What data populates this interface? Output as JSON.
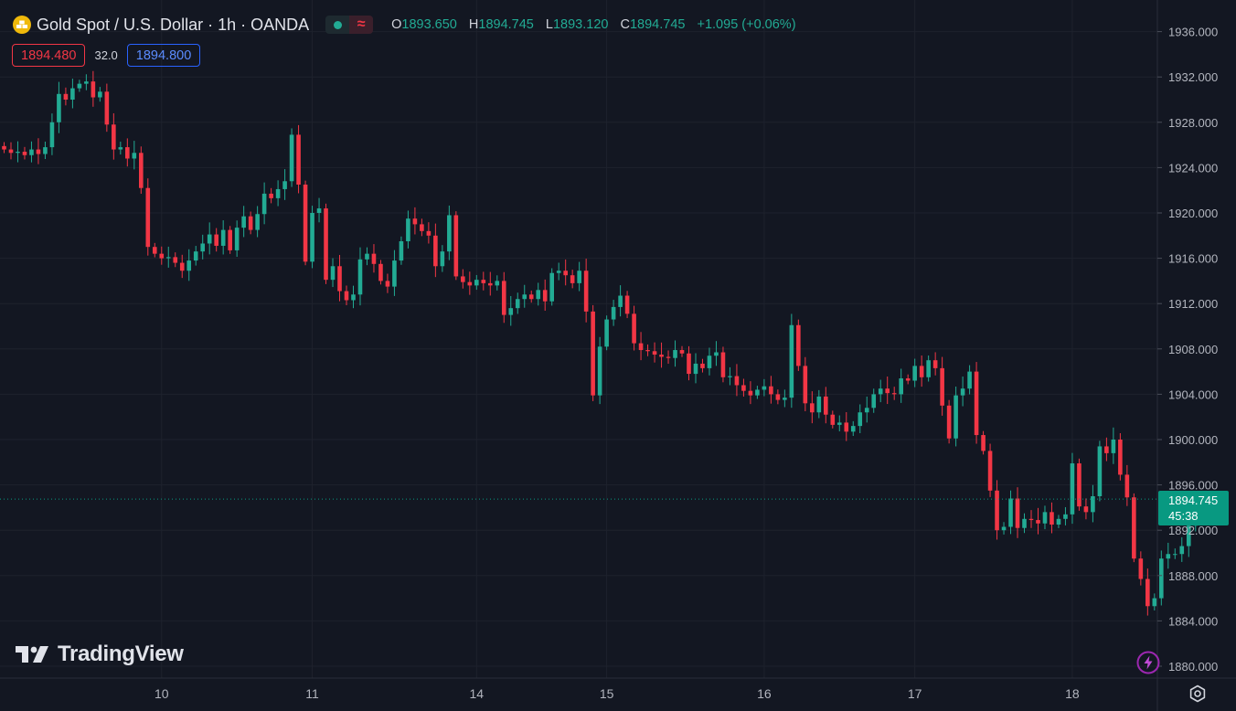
{
  "header": {
    "title": "Gold Spot / U.S. Dollar · 1h · OANDA",
    "ohlc": {
      "o_key": "O",
      "o_val": "1893.650",
      "h_key": "H",
      "h_val": "1894.745",
      "l_key": "L",
      "l_val": "1893.120",
      "c_key": "C",
      "c_val": "1894.745",
      "change": "+1.095 (+0.06%)"
    },
    "sell_price": "1894.480",
    "spread": "32.0",
    "buy_price": "1894.800"
  },
  "brand": {
    "logo_text": "TradingView"
  },
  "last_price": {
    "price": "1894.745",
    "countdown": "45:38"
  },
  "icons": {
    "symbol": "gold-bars-icon",
    "market_status": "dot-icon",
    "replay": "wave-icon",
    "alerts": "lightning-icon",
    "settings": "gear-icon",
    "logo": "tradingview-logo-icon"
  },
  "colors": {
    "background": "#131722",
    "up": "#22ab94",
    "down": "#f23645",
    "buy_border": "#2962ff",
    "last_price_bg": "#089981"
  },
  "chart_data": {
    "type": "candlestick",
    "timeframe": "1h",
    "ylim": [
      1878.5,
      1938.2
    ],
    "y_ticks": [
      "1936.000",
      "1932.000",
      "1928.000",
      "1924.000",
      "1920.000",
      "1916.000",
      "1912.000",
      "1908.000",
      "1904.000",
      "1900.000",
      "1896.000",
      "1892.000",
      "1888.000",
      "1884.000",
      "1880.000"
    ],
    "x_ticks": [
      {
        "label": "10",
        "index": 23
      },
      {
        "label": "11",
        "index": 45
      },
      {
        "label": "14",
        "index": 69
      },
      {
        "label": "15",
        "index": 88
      },
      {
        "label": "16",
        "index": 111
      },
      {
        "label": "17",
        "index": 133
      },
      {
        "label": "18",
        "index": 156
      }
    ],
    "grid": true,
    "last_price": 1894.745,
    "closes": [
      1925.6,
      1925.3,
      1925.4,
      1925.1,
      1925.6,
      1925.2,
      1925.8,
      1928.0,
      1930.5,
      1930.0,
      1931.0,
      1931.4,
      1931.6,
      1930.2,
      1930.7,
      1927.8,
      1925.6,
      1925.8,
      1924.8,
      1925.3,
      1922.2,
      1917.0,
      1916.4,
      1916.0,
      1916.1,
      1915.6,
      1914.9,
      1915.8,
      1916.6,
      1917.3,
      1918.1,
      1917.1,
      1918.5,
      1916.7,
      1918.7,
      1919.7,
      1918.5,
      1919.9,
      1921.7,
      1921.3,
      1922.1,
      1922.8,
      1926.9,
      1922.5,
      1915.7,
      1920.0,
      1920.4,
      1914.1,
      1915.3,
      1913.1,
      1912.3,
      1912.8,
      1915.9,
      1916.4,
      1915.5,
      1914.0,
      1913.5,
      1915.8,
      1917.5,
      1919.5,
      1919.0,
      1918.4,
      1918.0,
      1915.3,
      1916.6,
      1919.8,
      1914.4,
      1913.9,
      1913.6,
      1914.1,
      1913.8,
      1913.6,
      1914.0,
      1911.0,
      1911.6,
      1912.4,
      1912.8,
      1912.4,
      1913.2,
      1912.2,
      1914.7,
      1914.9,
      1914.5,
      1913.8,
      1914.9,
      1911.3,
      1903.9,
      1908.2,
      1910.6,
      1911.7,
      1912.7,
      1911.1,
      1908.5,
      1907.9,
      1907.8,
      1907.5,
      1907.3,
      1907.2,
      1907.9,
      1907.6,
      1905.8,
      1906.7,
      1906.3,
      1907.4,
      1907.7,
      1905.5,
      1905.6,
      1904.8,
      1904.3,
      1903.9,
      1904.4,
      1904.7,
      1904.0,
      1903.5,
      1903.7,
      1910.1,
      1906.5,
      1903.2,
      1902.4,
      1903.8,
      1902.2,
      1901.3,
      1901.5,
      1900.7,
      1901.2,
      1902.4,
      1902.8,
      1904.0,
      1904.5,
      1904.1,
      1904.0,
      1905.4,
      1905.2,
      1906.5,
      1905.5,
      1907.0,
      1906.3,
      1903.0,
      1900.1,
      1903.9,
      1904.5,
      1906.0,
      1900.4,
      1899.0,
      1895.5,
      1892.0,
      1892.3,
      1894.8,
      1892.2,
      1893.0,
      1892.9,
      1892.6,
      1893.6,
      1892.5,
      1893.0,
      1893.4,
      1897.9,
      1894.1,
      1893.6,
      1895.0,
      1899.4,
      1898.8,
      1900.0,
      1896.9,
      1894.9,
      1889.5,
      1887.7,
      1885.3,
      1886.0,
      1889.5,
      1889.9,
      1889.9,
      1890.6,
      1892.4,
      1894.3,
      1894.0,
      1894.745
    ]
  }
}
